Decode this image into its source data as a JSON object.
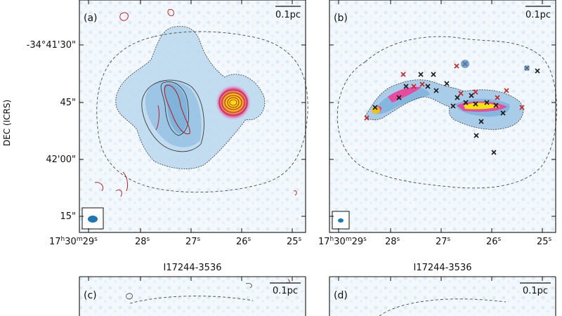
{
  "figure": {
    "y_axis_label": "DEC (ICRS)",
    "dec_ticks": [
      "-34°41'30\"",
      "45\"",
      "42'00\"",
      "15\""
    ],
    "ra_ticks": {
      "first_main": "17",
      "first_h": "h",
      "first_mid": "30",
      "first_m": "m",
      "first_sec": "29",
      "first_s": "s",
      "others": [
        {
          "main": "28",
          "unit": "s"
        },
        {
          "main": "27",
          "unit": "s"
        },
        {
          "main": "26",
          "unit": "s"
        },
        {
          "main": "25",
          "unit": "s"
        }
      ]
    },
    "scale_bar": "0.1pc",
    "source_name": "I17244-3536",
    "panels": {
      "a": "(a)",
      "b": "(b)",
      "c": "(c)",
      "d": "(d)"
    },
    "colors": {
      "background_map": "#c6dff0",
      "contour": "#3a3a3a",
      "red_contour": "#b5232b",
      "peak": "#f5e20a",
      "marker_black": "#1a1a1a",
      "marker_red": "#c0272d",
      "beam": "#1f77b4"
    }
  }
}
